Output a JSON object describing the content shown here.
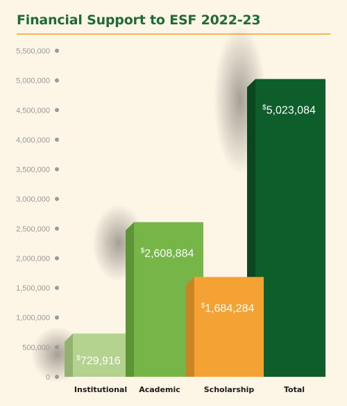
{
  "title": "Financial Support to ESF 2022-23",
  "colors": {
    "background": "#fdf5e6",
    "title": "#1f6a35",
    "rule": "#f0b85a",
    "tick": "#9a9a9a",
    "dot": "#9a9a9a"
  },
  "chart_data": {
    "type": "bar",
    "title": "Financial Support to ESF 2022-23",
    "xlabel": "",
    "ylabel": "",
    "ylim": [
      0,
      5500000
    ],
    "yticks": [
      0,
      500000,
      1000000,
      1500000,
      2000000,
      2500000,
      3000000,
      3500000,
      4000000,
      4500000,
      5000000,
      5500000
    ],
    "ytick_labels": [
      "0",
      "500,000",
      "1,000,000",
      "1,500,000",
      "2,000,000",
      "2,500,000",
      "3,000,000",
      "3,500,000",
      "4,000,000",
      "4,500,000",
      "5,000,000",
      "5,500,000"
    ],
    "categories": [
      "Institutional",
      "Academic",
      "Scholarship",
      "Total"
    ],
    "values": [
      729916,
      2608884,
      1684284,
      5023084
    ],
    "value_labels": [
      "729,916",
      "2,608,884",
      "1,684,284",
      "5,023,084"
    ],
    "currency_symbol": "$",
    "bar_colors": [
      "#b4d38e",
      "#76b649",
      "#f4a233",
      "#0e5e2c"
    ],
    "bar_side_colors": [
      "#93b26f",
      "#5c9436",
      "#c98424",
      "#0a4620"
    ],
    "bar_top_colors": [
      "#a9c985",
      "#6aa840",
      "#e59a2f",
      "#0c5326"
    ],
    "grid": false,
    "legend": "none"
  }
}
